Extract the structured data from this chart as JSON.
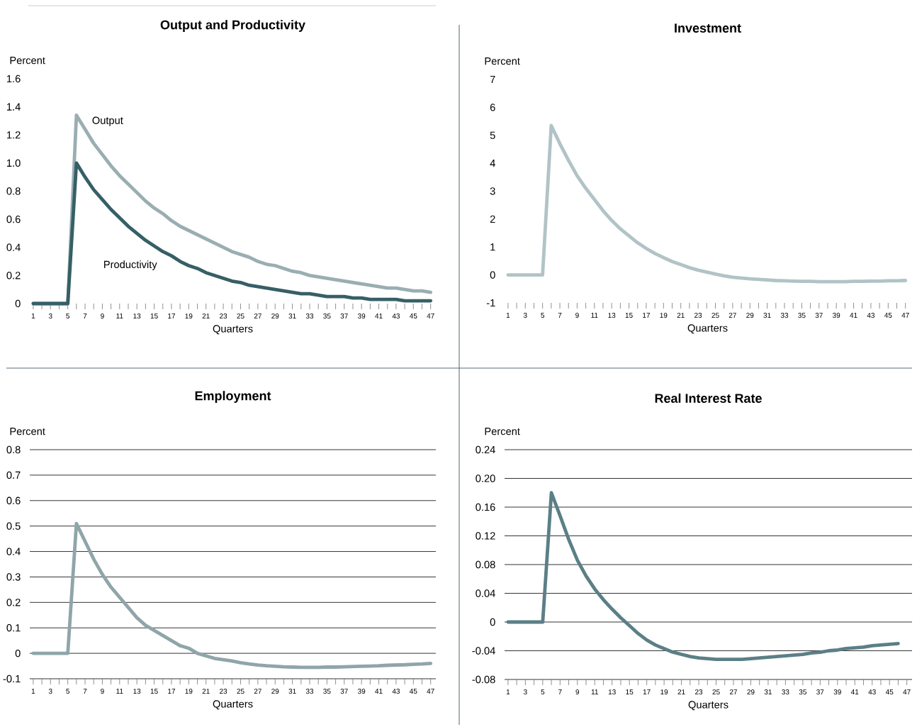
{
  "chart_data": [
    {
      "type": "line",
      "title": "Output and Productivity",
      "xlabel": "Quarters",
      "ylabel": "Percent",
      "categories": [
        "1",
        null,
        "3",
        null,
        "5",
        null,
        "7",
        null,
        "9",
        null,
        "11",
        null,
        "13",
        null,
        "15",
        null,
        "17",
        null,
        "19",
        null,
        "21",
        null,
        "23",
        null,
        "25",
        null,
        "27",
        null,
        "29",
        null,
        "31",
        null,
        "33",
        null,
        "35",
        null,
        "37",
        null,
        "39",
        null,
        "41",
        null,
        "43",
        null,
        "45",
        null,
        "47"
      ],
      "ylim": [
        0,
        1.6
      ],
      "yticks": [
        0,
        0.2,
        0.4,
        0.6,
        0.8,
        {
          "value": 1,
          "label": "1.0"
        },
        1.2,
        1.4,
        1.6
      ],
      "grid": false,
      "series": [
        {
          "name": "Output",
          "color": "#9aaeb2",
          "values": [
            0,
            0,
            0,
            0,
            0,
            1.34,
            1.24,
            1.14,
            1.06,
            0.98,
            0.91,
            0.85,
            0.79,
            0.73,
            0.68,
            0.64,
            0.59,
            0.55,
            0.52,
            0.49,
            0.46,
            0.43,
            0.4,
            0.37,
            0.35,
            0.33,
            0.3,
            0.28,
            0.27,
            0.25,
            0.23,
            0.22,
            0.2,
            0.19,
            0.18,
            0.17,
            0.16,
            0.15,
            0.14,
            0.13,
            0.12,
            0.11,
            0.11,
            0.1,
            0.09,
            0.09,
            0.08
          ]
        },
        {
          "name": "Productivity",
          "color": "#365f66",
          "values": [
            0,
            0,
            0,
            0,
            0,
            1.0,
            0.9,
            0.81,
            0.74,
            0.67,
            0.61,
            0.55,
            0.5,
            0.45,
            0.41,
            0.37,
            0.34,
            0.3,
            0.27,
            0.25,
            0.22,
            0.2,
            0.18,
            0.16,
            0.15,
            0.13,
            0.12,
            0.11,
            0.1,
            0.09,
            0.08,
            0.07,
            0.07,
            0.06,
            0.05,
            0.05,
            0.05,
            0.04,
            0.04,
            0.03,
            0.03,
            0.03,
            0.03,
            0.02,
            0.02,
            0.02,
            0.02
          ]
        }
      ]
    },
    {
      "type": "line",
      "title": "Investment",
      "xlabel": "Quarters",
      "ylabel": "Percent",
      "categories": [
        "1",
        null,
        "3",
        null,
        "5",
        null,
        "7",
        null,
        "9",
        null,
        "11",
        null,
        "13",
        null,
        "15",
        null,
        "17",
        null,
        "19",
        null,
        "21",
        null,
        "23",
        null,
        "25",
        null,
        "27",
        null,
        "29",
        null,
        "31",
        null,
        "33",
        null,
        "35",
        null,
        "37",
        null,
        "39",
        null,
        "41",
        null,
        "43",
        null,
        "45",
        null,
        "47"
      ],
      "ylim": [
        -1,
        7
      ],
      "yticks": [
        -1,
        0,
        1,
        2,
        3,
        4,
        5,
        6,
        7
      ],
      "grid": false,
      "color": "#b1c3c6",
      "values": [
        0,
        0,
        0,
        0,
        0,
        5.35,
        4.7,
        4.1,
        3.55,
        3.1,
        2.7,
        2.3,
        1.95,
        1.65,
        1.4,
        1.15,
        0.95,
        0.77,
        0.62,
        0.48,
        0.37,
        0.26,
        0.17,
        0.1,
        0.03,
        -0.03,
        -0.08,
        -0.11,
        -0.14,
        -0.16,
        -0.18,
        -0.2,
        -0.21,
        -0.22,
        -0.23,
        -0.23,
        -0.24,
        -0.24,
        -0.24,
        -0.24,
        -0.23,
        -0.23,
        -0.22,
        -0.22,
        -0.21,
        -0.21,
        -0.2
      ]
    },
    {
      "type": "line",
      "title": "Employment",
      "xlabel": "Quarters",
      "ylabel": "Percent",
      "categories": [
        "1",
        null,
        "3",
        null,
        "5",
        null,
        "7",
        null,
        "9",
        null,
        "11",
        null,
        "13",
        null,
        "15",
        null,
        "17",
        null,
        "19",
        null,
        "21",
        null,
        "23",
        null,
        "25",
        null,
        "27",
        null,
        "29",
        null,
        "31",
        null,
        "33",
        null,
        "35",
        null,
        "37",
        null,
        "39",
        null,
        "41",
        null,
        "43",
        null,
        "45",
        null,
        "47"
      ],
      "ylim": [
        -0.1,
        0.8
      ],
      "yticks": [
        -0.1,
        0,
        0.1,
        0.2,
        0.3,
        0.4,
        0.5,
        0.6,
        0.7,
        0.8
      ],
      "grid": true,
      "color": "#8fa5a9",
      "values": [
        0,
        0,
        0,
        0,
        0,
        0.51,
        0.44,
        0.37,
        0.31,
        0.26,
        0.22,
        0.18,
        0.14,
        0.11,
        0.09,
        0.07,
        0.05,
        0.03,
        0.02,
        0.0,
        -0.01,
        -0.02,
        -0.025,
        -0.03,
        -0.037,
        -0.042,
        -0.046,
        -0.049,
        -0.051,
        -0.053,
        -0.054,
        -0.055,
        -0.055,
        -0.055,
        -0.054,
        -0.054,
        -0.053,
        -0.052,
        -0.051,
        -0.05,
        -0.049,
        -0.047,
        -0.046,
        -0.045,
        -0.043,
        -0.042,
        -0.04
      ]
    },
    {
      "type": "line",
      "title": "Real Interest Rate",
      "xlabel": "Quarters",
      "ylabel": "Percent",
      "categories": [
        "1",
        null,
        "3",
        null,
        "5",
        null,
        "7",
        null,
        "9",
        null,
        "11",
        null,
        "13",
        null,
        "15",
        null,
        "17",
        null,
        "19",
        null,
        "21",
        null,
        "23",
        null,
        "25",
        null,
        "27",
        null,
        "29",
        null,
        "31",
        null,
        "33",
        null,
        "35",
        null,
        "37",
        null,
        "39",
        null,
        "41",
        null,
        "43",
        null,
        "45",
        null,
        "47"
      ],
      "ylim": [
        -0.08,
        0.24
      ],
      "yticks": [
        -0.08,
        -0.04,
        0,
        0.04,
        0.08,
        0.12,
        0.16,
        {
          "value": 0.2,
          "label": "0.20"
        },
        0.24
      ],
      "grid": true,
      "color": "#5b7f86",
      "values": [
        0,
        0,
        0,
        0,
        0,
        0.18,
        0.148,
        0.115,
        0.086,
        0.064,
        0.046,
        0.031,
        0.018,
        0.006,
        -0.005,
        -0.016,
        -0.025,
        -0.032,
        -0.037,
        -0.042,
        -0.045,
        -0.048,
        -0.05,
        -0.051,
        -0.052,
        -0.052,
        -0.052,
        -0.052,
        -0.051,
        -0.05,
        -0.049,
        -0.048,
        -0.047,
        -0.046,
        -0.045,
        -0.043,
        -0.042,
        -0.04,
        -0.039,
        -0.037,
        -0.036,
        -0.035,
        -0.033,
        -0.032,
        -0.031,
        -0.03,
        null
      ]
    }
  ]
}
